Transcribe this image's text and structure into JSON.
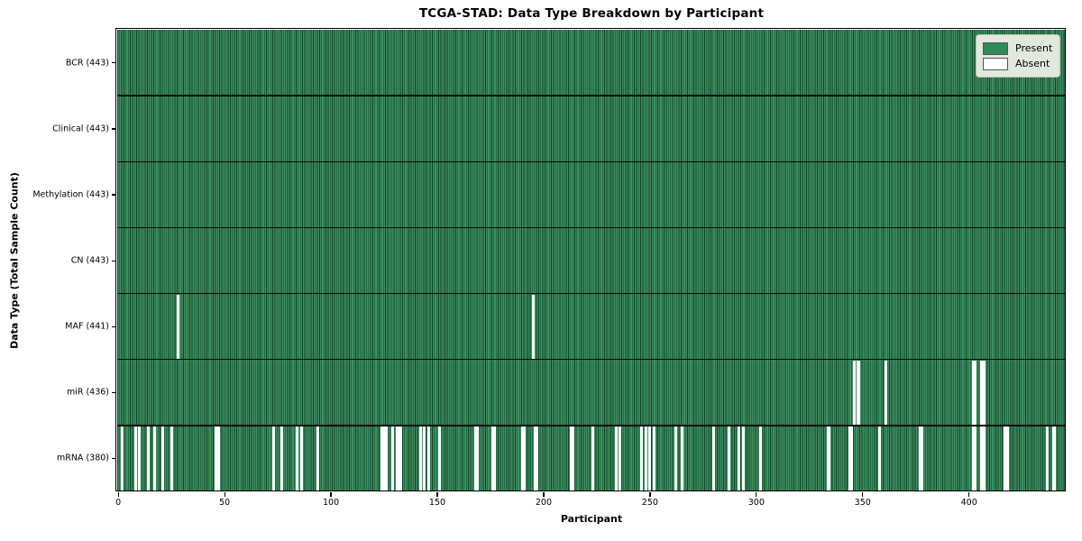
{
  "chart_data": {
    "type": "heatmap",
    "title": "TCGA-STAD: Data Type Breakdown by Participant",
    "xlabel": "Participant",
    "ylabel": "Data Type (Total Sample Count)",
    "x_ticks": [
      0,
      50,
      100,
      150,
      200,
      250,
      300,
      350,
      400
    ],
    "xlim": [
      -0.5,
      445.5
    ],
    "n_participants": 443,
    "grid": false,
    "legend_position": "upper right",
    "legend": [
      {
        "label": "Present",
        "value": 1,
        "color": "#2e8b57"
      },
      {
        "label": "Absent",
        "value": 0,
        "color": "#ffffff"
      }
    ],
    "rows": [
      {
        "label": "BCR (443)",
        "data_type": "BCR",
        "present_count": 443,
        "absent_participants": []
      },
      {
        "label": "Clinical (443)",
        "data_type": "Clinical",
        "present_count": 443,
        "absent_participants": []
      },
      {
        "label": "Methylation (443)",
        "data_type": "Methylation",
        "present_count": 443,
        "absent_participants": []
      },
      {
        "label": "CN (443)",
        "data_type": "CN",
        "present_count": 443,
        "absent_participants": []
      },
      {
        "label": "MAF (441)",
        "data_type": "MAF",
        "present_count": 441,
        "absent_participants": [
          28,
          195
        ]
      },
      {
        "label": "miR (436)",
        "data_type": "miR",
        "present_count": 436,
        "absent_participants": [
          346,
          348,
          361,
          402,
          403,
          406,
          407
        ]
      },
      {
        "label": "mRNA (380)",
        "data_type": "mRNA",
        "present_count": 380,
        "absent_participants": [
          2,
          8,
          10,
          14,
          17,
          21,
          25,
          46,
          47,
          73,
          77,
          84,
          86,
          94,
          124,
          125,
          126,
          129,
          131,
          132,
          133,
          142,
          144,
          146,
          151,
          168,
          169,
          176,
          177,
          190,
          191,
          196,
          197,
          213,
          214,
          223,
          234,
          236,
          246,
          248,
          250,
          252,
          262,
          265,
          280,
          287,
          292,
          294,
          302,
          334,
          344,
          345,
          358,
          377,
          378,
          402,
          403,
          406,
          407,
          417,
          418,
          437,
          440
        ]
      }
    ],
    "colors": {
      "present_fill": "#37935f",
      "bar_edge": "#1c3a29",
      "absent_fill": "#ffffff",
      "frame": "#000000"
    }
  }
}
